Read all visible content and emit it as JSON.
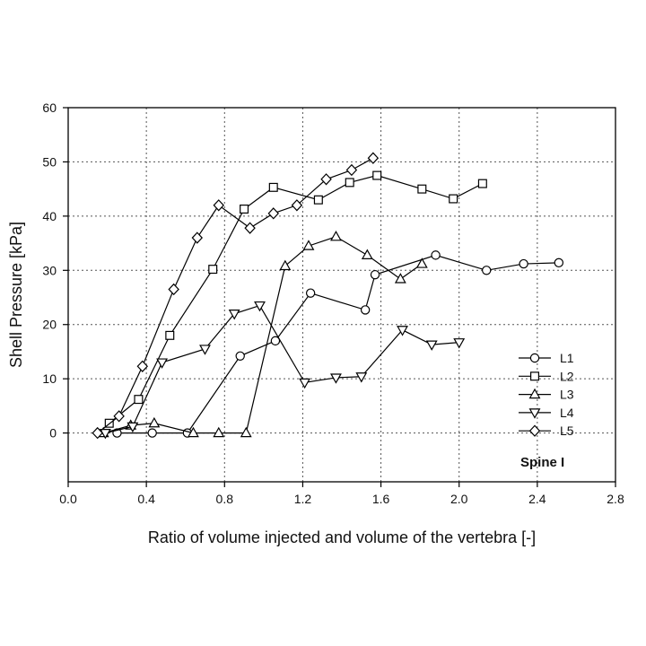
{
  "chart_data": {
    "type": "line",
    "xlabel": "Ratio of volume injected and volume of the vertebra [-]",
    "ylabel": "Shell Pressure [kPa]",
    "xlim": [
      0.0,
      2.8
    ],
    "ylim": [
      -9,
      60
    ],
    "xticks": [
      0.0,
      0.4,
      0.8,
      1.2,
      1.6,
      2.0,
      2.4,
      2.8
    ],
    "yticks": [
      0,
      10,
      20,
      30,
      40,
      50,
      60
    ],
    "xtick_labels": [
      "0.0",
      "0.4",
      "0.8",
      "1.2",
      "1.6",
      "2.0",
      "2.4",
      "2.8"
    ],
    "ytick_labels": [
      "0",
      "10",
      "20",
      "30",
      "40",
      "50",
      "60"
    ],
    "grid": true,
    "legend_position": "bottom-right",
    "annotation": "Spine I",
    "series": [
      {
        "name": "L1",
        "marker": "circle",
        "x": [
          0.25,
          0.43,
          0.61,
          0.88,
          1.06,
          1.24,
          1.52,
          1.57,
          1.88,
          2.14,
          2.33,
          2.51
        ],
        "y": [
          0,
          0,
          0,
          14.2,
          17,
          25.8,
          22.7,
          29.2,
          32.8,
          30,
          31.2,
          31.4
        ]
      },
      {
        "name": "L2",
        "marker": "square",
        "x": [
          0.21,
          0.36,
          0.52,
          0.74,
          0.9,
          1.05,
          1.28,
          1.44,
          1.58,
          1.81,
          1.97,
          2.12
        ],
        "y": [
          1.8,
          6.2,
          18,
          30.2,
          41.3,
          45.3,
          43,
          46.2,
          47.5,
          45,
          43.2,
          46
        ]
      },
      {
        "name": "L3",
        "marker": "triangle-up",
        "x": [
          0.18,
          0.32,
          0.44,
          0.64,
          0.77,
          0.91,
          1.11,
          1.23,
          1.37,
          1.53,
          1.7,
          1.81
        ],
        "y": [
          0,
          1.4,
          1.8,
          0,
          0,
          0,
          30.8,
          34.5,
          36.2,
          32.8,
          28.4,
          31.2
        ]
      },
      {
        "name": "L4",
        "marker": "triangle-down",
        "x": [
          0.19,
          0.33,
          0.48,
          0.7,
          0.85,
          0.98,
          1.21,
          1.37,
          1.5,
          1.71,
          1.86,
          2.0
        ],
        "y": [
          0,
          1.2,
          13,
          15.5,
          22,
          23.5,
          9.3,
          10.2,
          10.4,
          19,
          16.3,
          16.7
        ]
      },
      {
        "name": "L5",
        "marker": "diamond",
        "x": [
          0.15,
          0.26,
          0.38,
          0.54,
          0.66,
          0.77,
          0.93,
          1.05,
          1.17,
          1.32,
          1.45,
          1.56
        ],
        "y": [
          0,
          3.1,
          12.3,
          26.5,
          36,
          42,
          37.8,
          40.5,
          42,
          46.8,
          48.5,
          50.7
        ]
      }
    ]
  }
}
